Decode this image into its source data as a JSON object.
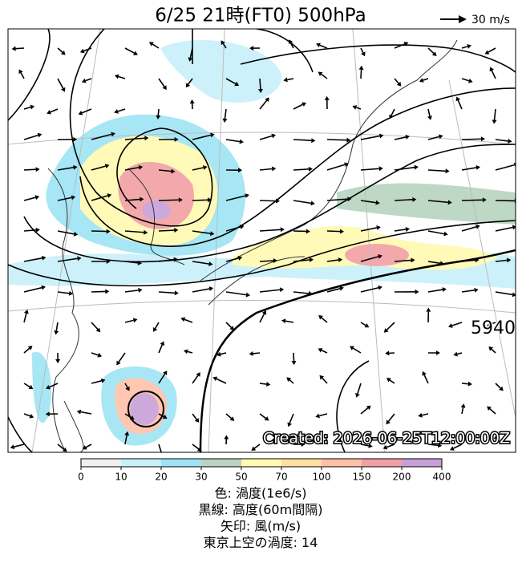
{
  "title": "6/25  21時(FT0)    500hPa",
  "scale_label": "30 m/s",
  "contour_label": "5940",
  "created": "Created: 2026-06-25T12:00:00Z",
  "colorbar": {
    "ticks": [
      0,
      10,
      20,
      30,
      50,
      70,
      100,
      150,
      200,
      400
    ],
    "colors": [
      "#f0f0f0",
      "#c8f0fa",
      "#9ee4f4",
      "#b8d4c0",
      "#fffab0",
      "#ffe0a0",
      "#ffc0a8",
      "#f2a0a4",
      "#c8a0d8"
    ]
  },
  "caption": [
    "色: 渦度(1e6/s)",
    "黒線: 高度(60m間隔)",
    "矢印: 風(m/s)",
    "東京上空の渦度: 14"
  ]
}
